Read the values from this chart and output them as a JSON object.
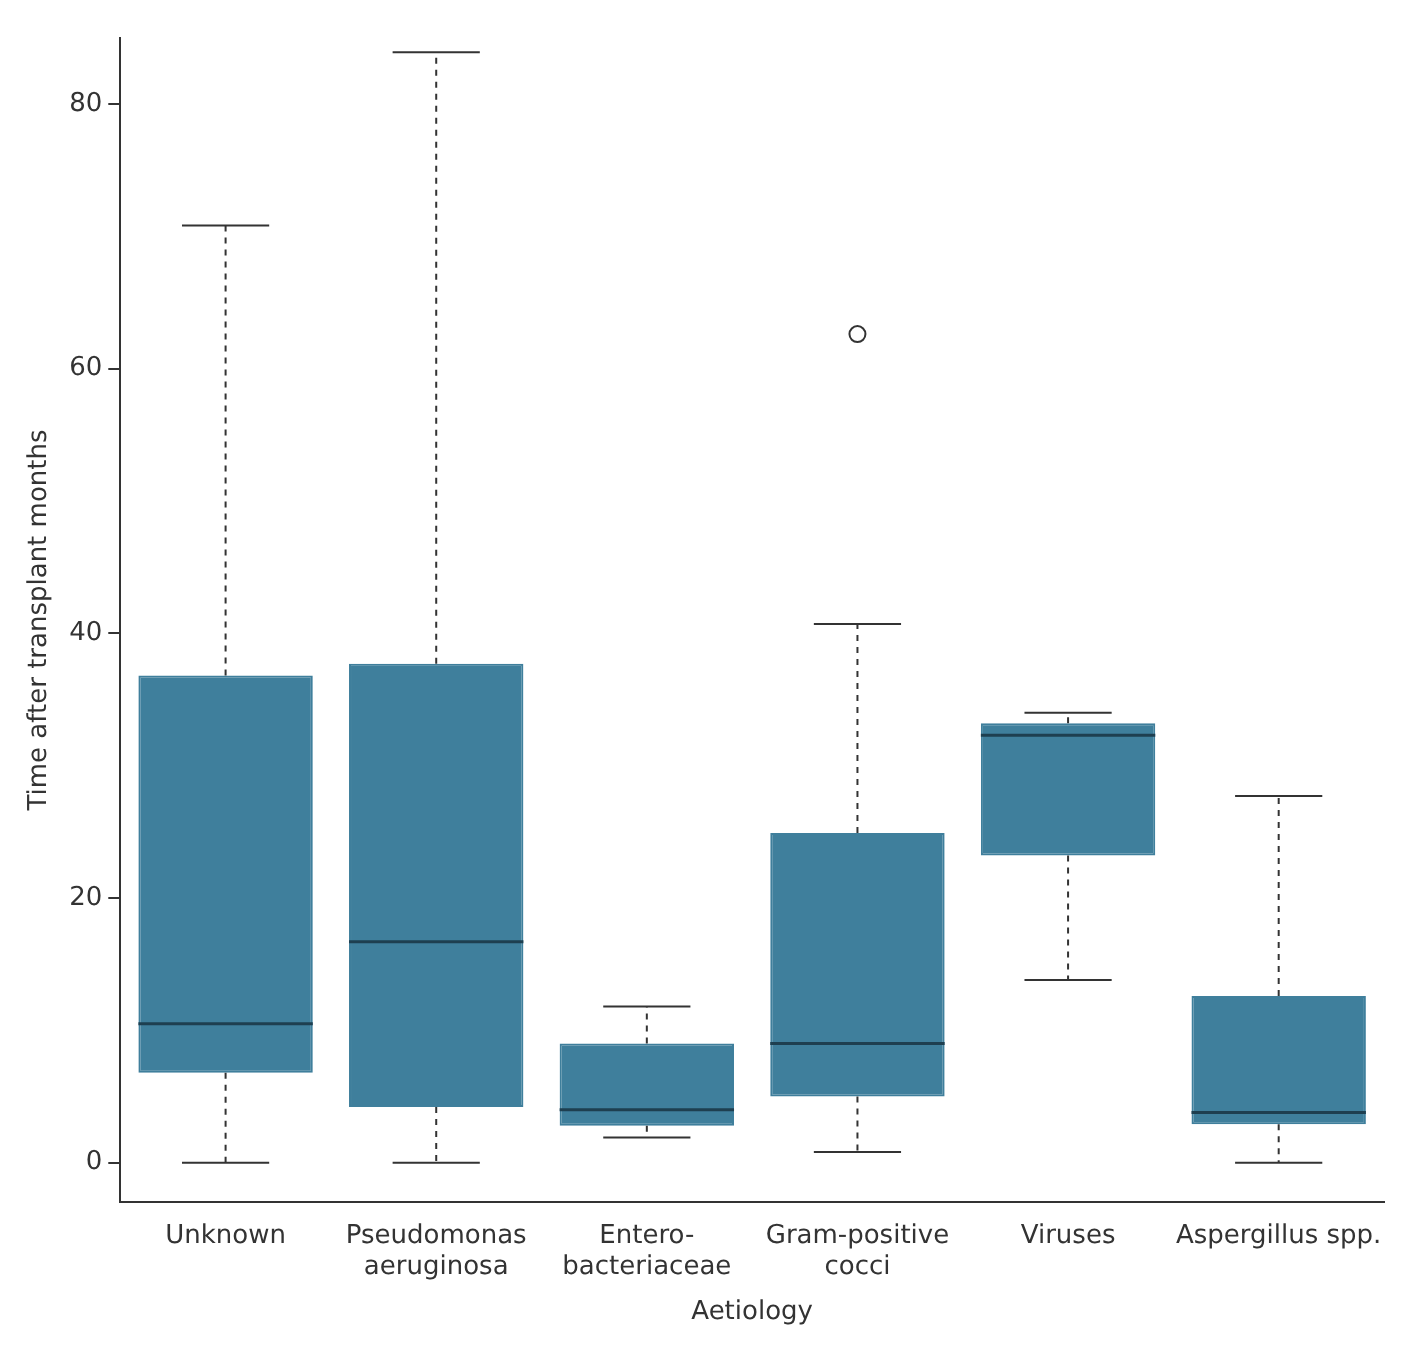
{
  "chart_data": {
    "type": "box",
    "xlabel": "Aetiology",
    "ylabel": "Time after transplant months",
    "categories": [
      "Unknown",
      "Pseudomonas\naeruginosa",
      "Entero-\nbacteriaceae",
      "Gram-positive\ncocci",
      "Viruses",
      "Aspergillus spp."
    ],
    "boxes": [
      {
        "low": 0,
        "q1": 6.8,
        "median": 10.5,
        "q3": 36.8,
        "high": 70.8
      },
      {
        "low": 0,
        "q1": 4.2,
        "median": 16.7,
        "q3": 37.7,
        "high": 83.9
      },
      {
        "low": 1.9,
        "q1": 2.8,
        "median": 4,
        "q3": 9,
        "high": 11.8
      },
      {
        "low": 0.8,
        "q1": 5,
        "median": 9,
        "q3": 24.9,
        "high": 40.7,
        "outliers": [
          62.6
        ]
      },
      {
        "low": 13.8,
        "q1": 23.2,
        "median": 32.3,
        "q3": 33.2,
        "high": 34
      },
      {
        "low": 0,
        "q1": 2.9,
        "median": 3.8,
        "q3": 12.6,
        "high": 27.7
      }
    ],
    "color": "#3f7f9c",
    "ylim": [
      -3,
      85
    ],
    "yticks": [
      0,
      20,
      40,
      60,
      80
    ],
    "grid": false
  }
}
